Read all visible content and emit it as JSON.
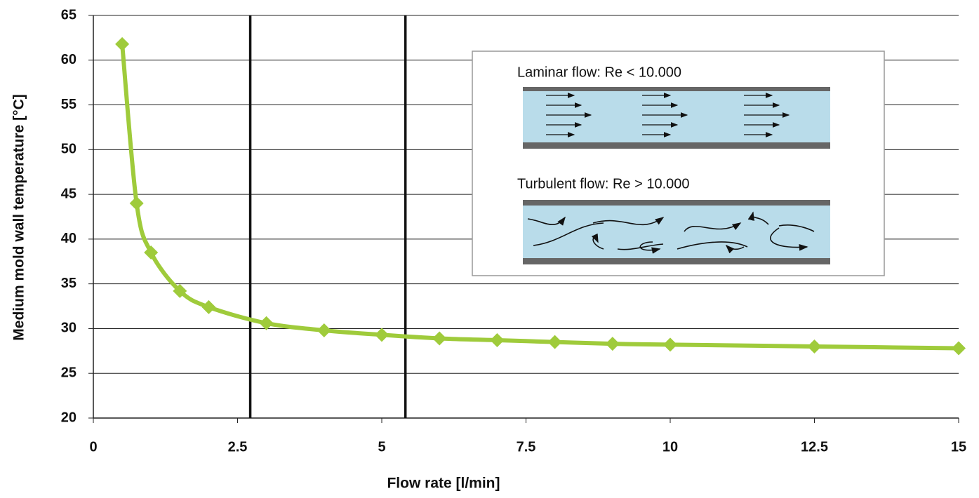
{
  "chart_data": {
    "type": "line",
    "x_label": "Flow rate [l/min]",
    "y_label": "Medium mold wall temperature [°C]",
    "x": [
      0.5,
      0.75,
      1,
      1.5,
      2,
      3,
      4,
      5,
      6,
      7,
      8,
      9,
      10,
      12.5,
      15
    ],
    "series": [
      {
        "color": "#9fcb3b",
        "values": [
          61.8,
          44,
          38.5,
          34.2,
          32.4,
          30.6,
          29.8,
          29.3,
          28.9,
          28.7,
          28.5,
          28.3,
          28.2,
          28,
          27.8
        ]
      }
    ],
    "xlim": [
      0,
      15
    ],
    "xticks": [
      0,
      2.5,
      5,
      7.5,
      10,
      12.5,
      15
    ],
    "ylim": [
      20,
      65
    ],
    "yticks": [
      20,
      25,
      30,
      35,
      40,
      45,
      50,
      55,
      60,
      65
    ],
    "grid": true,
    "vlines": [
      2.72,
      5.41
    ],
    "inset": {
      "laminar": "Laminar flow: Re < 10.000",
      "turbulent": "Turbulent flow: Re > 10.000"
    }
  }
}
